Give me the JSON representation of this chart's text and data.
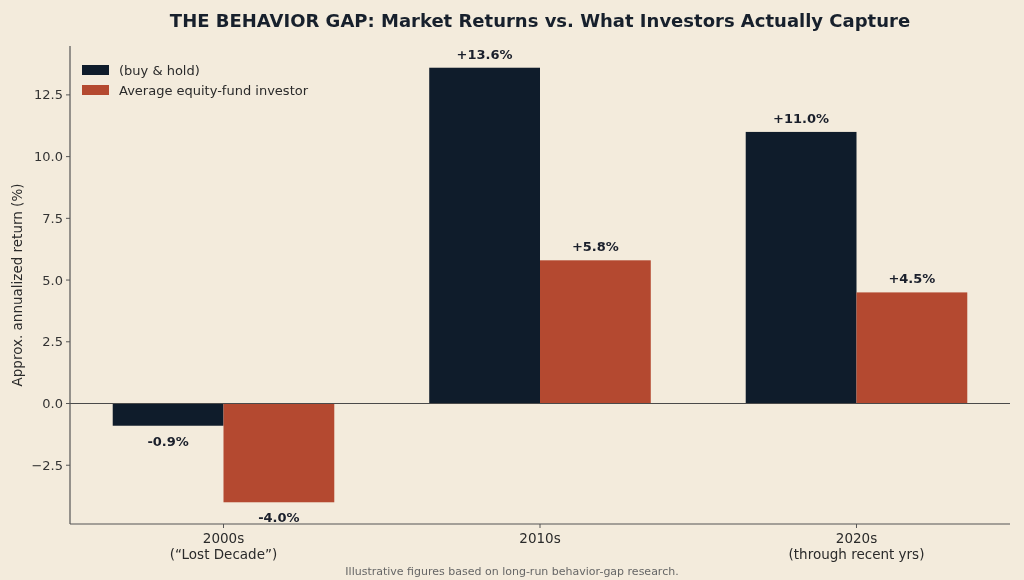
{
  "chart_data": {
    "type": "bar",
    "title": "THE BEHAVIOR GAP: Market Returns vs. What Investors Actually Capture",
    "ylabel": "Approx. annualized return (%)",
    "categories": [
      "2000s\n(“Lost Decade”)",
      "2010s",
      "2020s\n(through recent yrs)"
    ],
    "series": [
      {
        "name": "(buy & hold)",
        "color": "#0f1c2b",
        "values": [
          -0.9,
          13.6,
          11.0
        ],
        "value_labels": [
          "-0.9%",
          "+13.6%",
          "+11.0%"
        ]
      },
      {
        "name": "Average equity-fund investor",
        "color": "#b44930",
        "values": [
          -4.0,
          5.8,
          4.5
        ],
        "value_labels": [
          "-4.0%",
          "+5.8%",
          "+4.5%"
        ]
      }
    ],
    "ylim": [
      -4.88,
      14.48
    ],
    "yticks": [
      {
        "value": -2.5,
        "label": "−2.5"
      },
      {
        "value": 0,
        "label": "0.0"
      },
      2.5,
      {
        "value": 5,
        "label": "5.0"
      },
      7.5,
      {
        "value": 10,
        "label": "10.0"
      },
      12.5
    ],
    "ref_lines": [
      {
        "axis": "y",
        "value": 0,
        "color": "#4a4a4a"
      }
    ],
    "legend": "top left",
    "annotations": [
      "Illustrative figures based on long-run behavior-gap research."
    ]
  }
}
